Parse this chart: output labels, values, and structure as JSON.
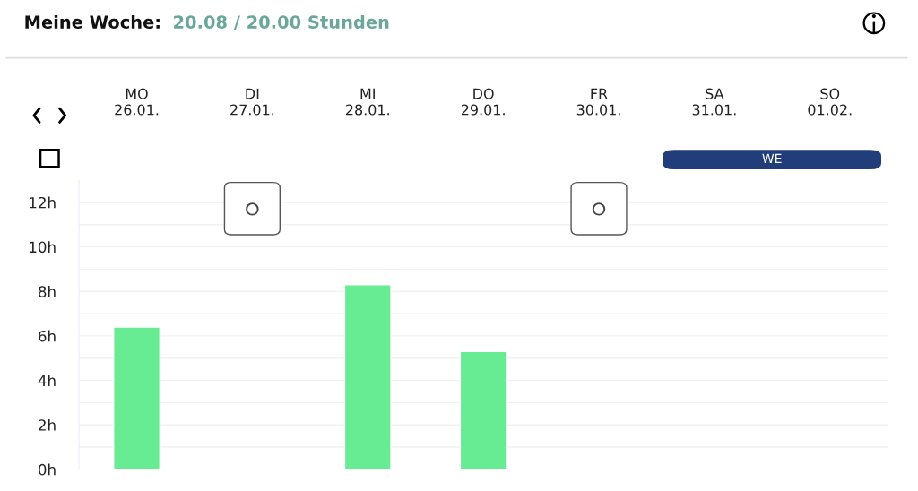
{
  "chart_data": {
    "type": "bar",
    "title": "Meine Woche:",
    "subtitle": "20.08 / 20.00 Stunden",
    "categories": [
      "MO\n26.01.",
      "DI\n27.01.",
      "MI\n28.01.",
      "DO\n29.01.",
      "FR\n30.01.",
      "SA\n31.01.",
      "SO\n01.02."
    ],
    "values": [
      6.4,
      null,
      8.3,
      5.3,
      null,
      null,
      null
    ],
    "color": "#67eb93",
    "ylim": [
      0,
      13
    ],
    "yticks": [
      {
        "value": 0,
        "label": "0h"
      },
      {
        "value": 1,
        "label": null
      },
      {
        "value": 2,
        "label": "2h"
      },
      {
        "value": 3,
        "label": null
      },
      {
        "value": 4,
        "label": "4h"
      },
      {
        "value": 5,
        "label": null
      },
      {
        "value": 6,
        "label": "6h"
      },
      {
        "value": 7,
        "label": null
      },
      {
        "value": 8,
        "label": "8h"
      },
      {
        "value": 9,
        "label": null
      },
      {
        "value": 10,
        "label": "10h"
      },
      {
        "value": 11,
        "label": null
      },
      {
        "value": 12,
        "label": "12h"
      }
    ],
    "annotations": [
      "WE"
    ],
    "grid": "y",
    "legend": false
  }
}
